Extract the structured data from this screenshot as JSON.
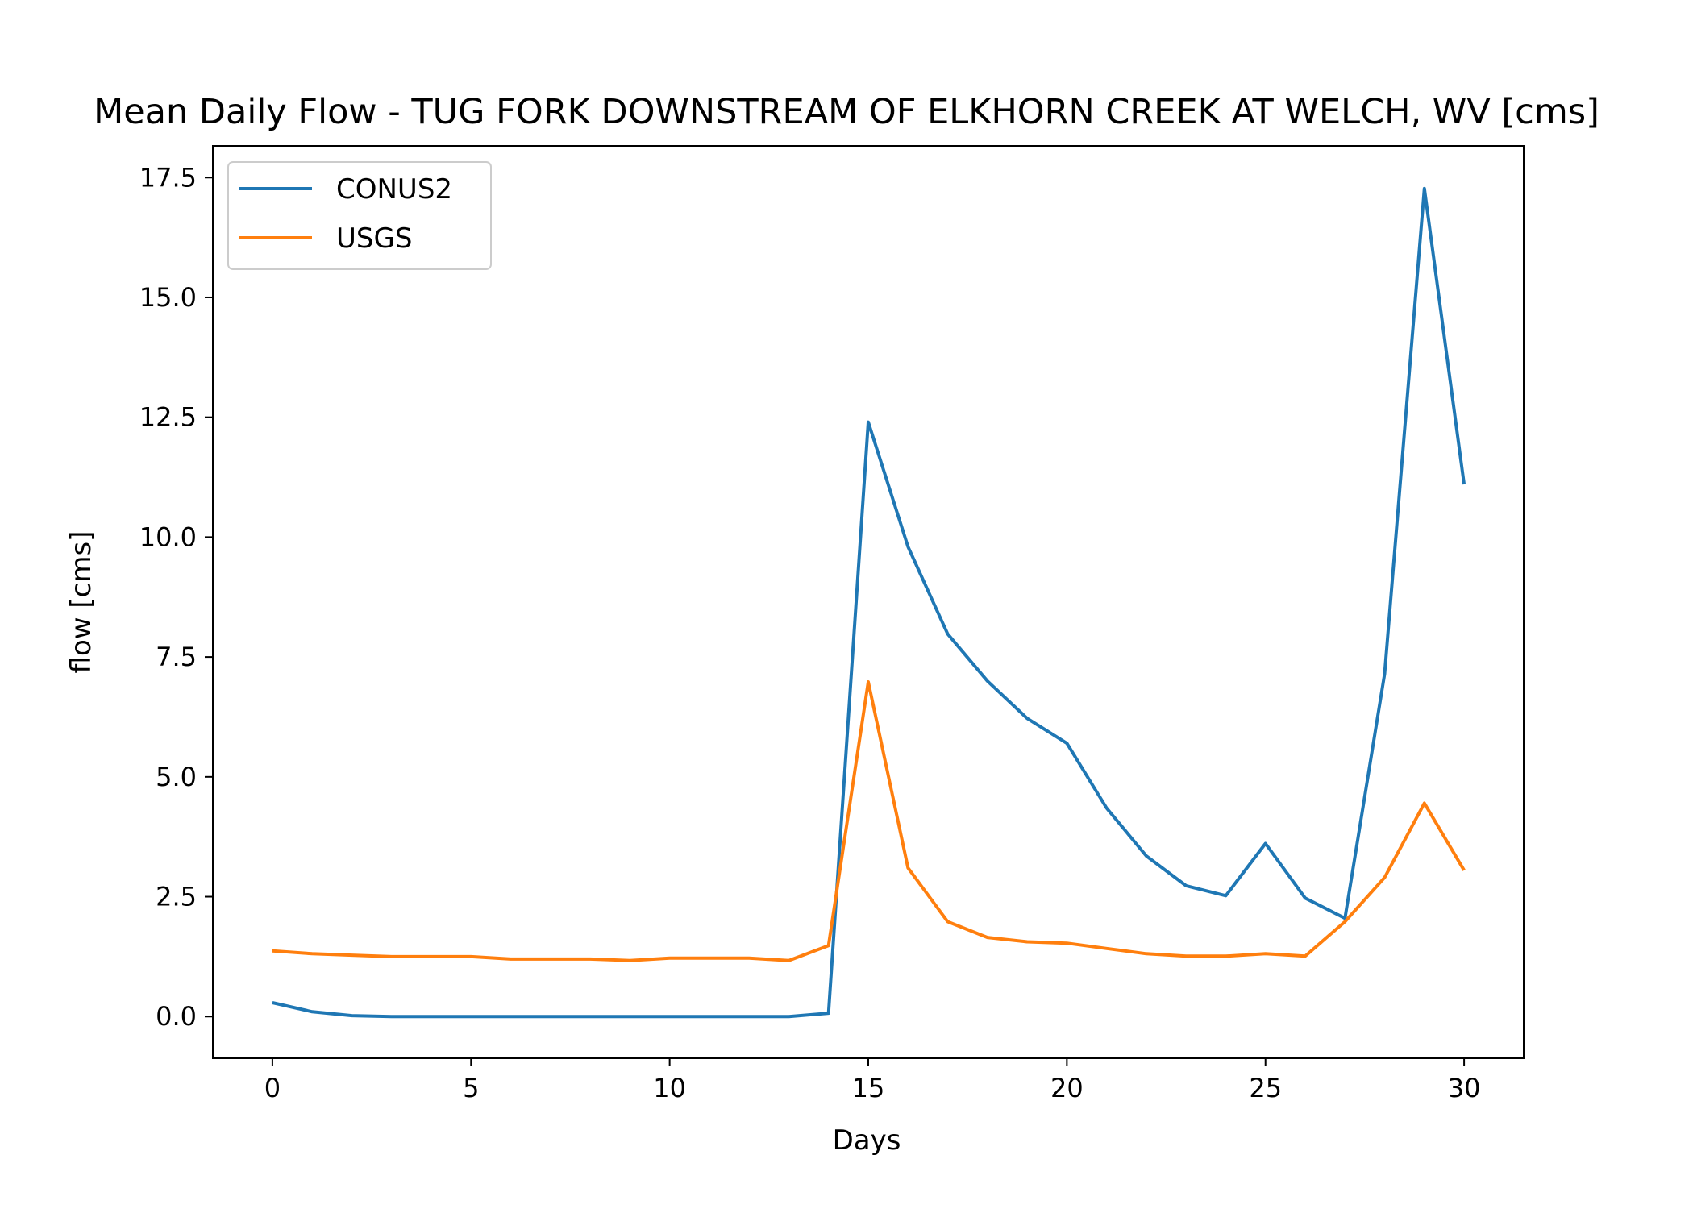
{
  "chart_data": {
    "type": "line",
    "title": "Mean Daily Flow - TUG FORK DOWNSTREAM OF ELKHORN CREEK AT WELCH, WV [cms]",
    "xlabel": "Days",
    "ylabel": "flow [cms]",
    "xlim": [
      -1.5,
      31.5
    ],
    "ylim": [
      -0.87,
      18.16
    ],
    "xticks": [
      0,
      5,
      10,
      15,
      20,
      25,
      30
    ],
    "xtick_labels": [
      "0",
      "5",
      "10",
      "15",
      "20",
      "25",
      "30"
    ],
    "yticks": [
      0,
      2.5,
      5,
      7.5,
      10,
      12.5,
      15,
      17.5
    ],
    "ytick_labels": [
      "0.0",
      "2.5",
      "5.0",
      "7.5",
      "10.0",
      "12.5",
      "15.0",
      "17.5"
    ],
    "grid": false,
    "legend_position": "upper-left",
    "x": [
      0,
      1,
      2,
      3,
      4,
      5,
      6,
      7,
      8,
      9,
      10,
      11,
      12,
      13,
      14,
      15,
      16,
      17,
      18,
      19,
      20,
      21,
      22,
      23,
      24,
      25,
      26,
      27,
      28,
      29,
      30
    ],
    "series": [
      {
        "name": "CONUS2",
        "color": "#1f77b4",
        "values": [
          0.29,
          0.1,
          0.02,
          0.0,
          0.0,
          0.0,
          0.0,
          0.0,
          0.0,
          0.0,
          0.0,
          0.0,
          0.0,
          0.0,
          0.07,
          12.4,
          9.8,
          7.98,
          7.0,
          6.22,
          5.7,
          4.35,
          3.35,
          2.73,
          2.52,
          3.61,
          2.47,
          2.05,
          7.15,
          17.27,
          11.1
        ]
      },
      {
        "name": "USGS",
        "color": "#ff7f0e",
        "values": [
          1.37,
          1.31,
          1.28,
          1.25,
          1.25,
          1.25,
          1.2,
          1.2,
          1.2,
          1.17,
          1.22,
          1.22,
          1.22,
          1.17,
          1.48,
          6.98,
          3.1,
          1.98,
          1.65,
          1.56,
          1.53,
          1.42,
          1.31,
          1.26,
          1.26,
          1.31,
          1.26,
          1.98,
          2.9,
          4.45,
          3.05
        ]
      }
    ]
  }
}
